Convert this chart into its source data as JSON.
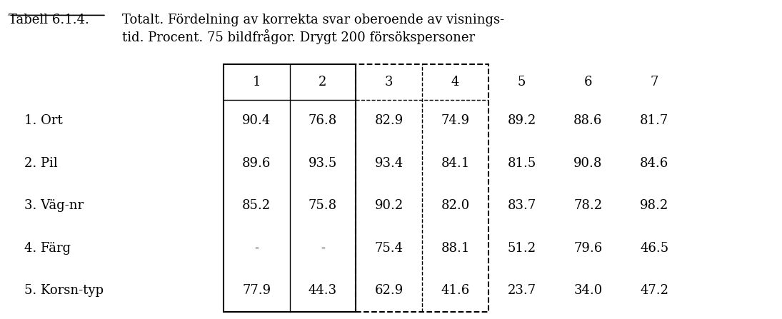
{
  "title_label": "Tabell 6.1.4.",
  "title_text": "Totalt. Fördelning av korrekta svar oberoende av visnings-\ntid. Procent. 75 bildfrågor. Drygt 200 försökspersoner",
  "col_headers": [
    "1",
    "2",
    "3",
    "4",
    "5",
    "6",
    "7"
  ],
  "row_labels": [
    "1. Ort",
    "2. Pil",
    "3. Väg-nr",
    "4. Färg",
    "5. Korsn-typ"
  ],
  "data": [
    [
      "90.4",
      "76.8",
      "82.9",
      "74.9",
      "89.2",
      "88.6",
      "81.7"
    ],
    [
      "89.6",
      "93.5",
      "93.4",
      "84.1",
      "81.5",
      "90.8",
      "84.6"
    ],
    [
      "85.2",
      "75.8",
      "90.2",
      "82.0",
      "83.7",
      "78.2",
      "98.2"
    ],
    [
      "-",
      "-",
      "75.4",
      "88.1",
      "51.2",
      "79.6",
      "46.5"
    ],
    [
      "77.9",
      "44.3",
      "62.9",
      "41.6",
      "23.7",
      "34.0",
      "47.2"
    ]
  ],
  "font_size": 13,
  "title_font_size": 13,
  "bg_color": "#ffffff",
  "text_color": "#000000"
}
